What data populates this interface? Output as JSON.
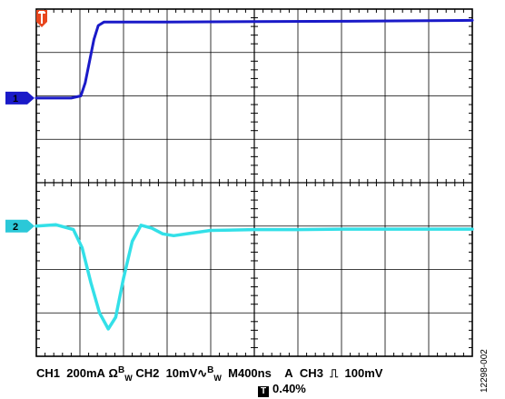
{
  "chart_data": {
    "type": "line",
    "grid": true,
    "x_divisions": 10,
    "y_divisions": 8,
    "xlim_div": [
      0,
      10
    ],
    "ylim_div": [
      0,
      8
    ],
    "trigger_marker": "T",
    "series": [
      {
        "name": "1",
        "color": "#1A1AC8",
        "marker_color": "#1A1AC8",
        "marker_level_div": 5.95,
        "points": [
          [
            0,
            5.95
          ],
          [
            0.8,
            5.95
          ],
          [
            1.02,
            6.0
          ],
          [
            1.12,
            6.3
          ],
          [
            1.22,
            6.8
          ],
          [
            1.32,
            7.3
          ],
          [
            1.42,
            7.62
          ],
          [
            1.55,
            7.7
          ],
          [
            3,
            7.7
          ],
          [
            5,
            7.71
          ],
          [
            7,
            7.72
          ],
          [
            10,
            7.74
          ]
        ]
      },
      {
        "name": "2",
        "color": "#33E0E8",
        "marker_color": "#2BC8D8",
        "marker_level_div": 3.0,
        "points": [
          [
            0,
            3.0
          ],
          [
            0.45,
            3.03
          ],
          [
            0.85,
            2.92
          ],
          [
            1.05,
            2.5
          ],
          [
            1.25,
            1.7
          ],
          [
            1.45,
            1.0
          ],
          [
            1.65,
            0.63
          ],
          [
            1.82,
            0.9
          ],
          [
            2.0,
            1.8
          ],
          [
            2.2,
            2.65
          ],
          [
            2.4,
            3.02
          ],
          [
            2.65,
            2.95
          ],
          [
            2.9,
            2.82
          ],
          [
            3.15,
            2.78
          ],
          [
            3.5,
            2.83
          ],
          [
            4.0,
            2.9
          ],
          [
            5,
            2.92
          ],
          [
            6,
            2.92
          ],
          [
            7,
            2.93
          ],
          [
            8,
            2.93
          ],
          [
            10,
            2.93
          ]
        ]
      }
    ]
  },
  "status": {
    "ch1": "CH1",
    "ch1_scale": "200mA",
    "ch1_icons": "Ω",
    "bw": "B",
    "bw_sub": "W",
    "ch2": "CH2",
    "ch2_scale": "10mV",
    "ch2_icon": "∿",
    "timebase": "M400ns",
    "trig_mode": "A",
    "trig_src": "CH3",
    "trig_slope_icon": "⎍",
    "trig_level": "100mV",
    "trig_pos_icon": "T",
    "trig_pos": "0.40%"
  },
  "figure_id": "12298-002"
}
